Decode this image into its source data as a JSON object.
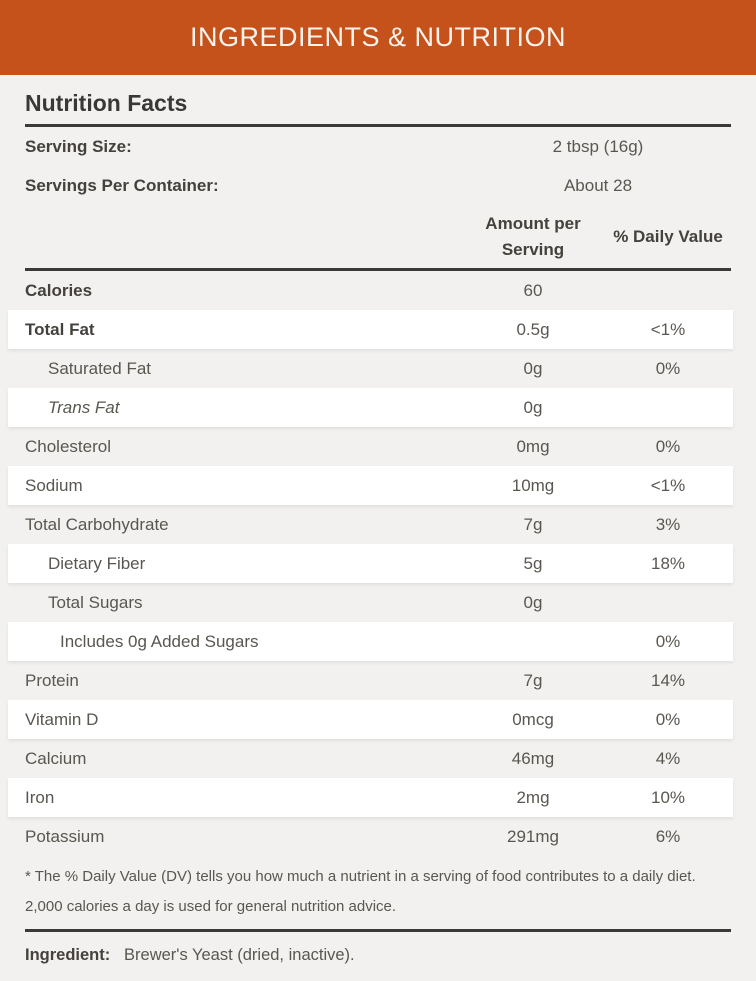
{
  "banner": {
    "title": "INGREDIENTS & NUTRITION"
  },
  "panel": {
    "title": "Nutrition Facts",
    "serving_rows": [
      {
        "label": "Serving Size:",
        "value": "2 tbsp (16g)"
      },
      {
        "label": "Servings Per Container:",
        "value": "About 28"
      }
    ],
    "columns": {
      "amount": "Amount per Serving",
      "daily_value": "% Daily Value"
    },
    "rows": [
      {
        "label": "Calories",
        "amount": "60",
        "dv": "",
        "indent": 0,
        "bold": true,
        "italic": false,
        "bg": "gray"
      },
      {
        "label": "Total Fat",
        "amount": "0.5g",
        "dv": "<1%",
        "indent": 0,
        "bold": true,
        "italic": false,
        "bg": "white"
      },
      {
        "label": "Saturated Fat",
        "amount": "0g",
        "dv": "0%",
        "indent": 1,
        "bold": false,
        "italic": false,
        "bg": "gray"
      },
      {
        "label": "Trans Fat",
        "amount": "0g",
        "dv": "",
        "indent": 1,
        "bold": false,
        "italic": true,
        "bg": "white"
      },
      {
        "label": "Cholesterol",
        "amount": "0mg",
        "dv": "0%",
        "indent": 0,
        "bold": false,
        "italic": false,
        "bg": "gray"
      },
      {
        "label": "Sodium",
        "amount": "10mg",
        "dv": "<1%",
        "indent": 0,
        "bold": false,
        "italic": false,
        "bg": "white"
      },
      {
        "label": "Total Carbohydrate",
        "amount": "7g",
        "dv": "3%",
        "indent": 0,
        "bold": false,
        "italic": false,
        "bg": "gray"
      },
      {
        "label": "Dietary Fiber",
        "amount": "5g",
        "dv": "18%",
        "indent": 1,
        "bold": false,
        "italic": false,
        "bg": "white"
      },
      {
        "label": "Total Sugars",
        "amount": "0g",
        "dv": "",
        "indent": 1,
        "bold": false,
        "italic": false,
        "bg": "gray"
      },
      {
        "label": "Includes 0g Added Sugars",
        "amount": "",
        "dv": "0%",
        "indent": 2,
        "bold": false,
        "italic": false,
        "bg": "white"
      },
      {
        "label": "Protein",
        "amount": "7g",
        "dv": "14%",
        "indent": 0,
        "bold": false,
        "italic": false,
        "bg": "gray"
      },
      {
        "label": "Vitamin D",
        "amount": "0mcg",
        "dv": "0%",
        "indent": 0,
        "bold": false,
        "italic": false,
        "bg": "white"
      },
      {
        "label": "Calcium",
        "amount": "46mg",
        "dv": "4%",
        "indent": 0,
        "bold": false,
        "italic": false,
        "bg": "gray"
      },
      {
        "label": "Iron",
        "amount": "2mg",
        "dv": "10%",
        "indent": 0,
        "bold": false,
        "italic": false,
        "bg": "white"
      },
      {
        "label": "Potassium",
        "amount": "291mg",
        "dv": "6%",
        "indent": 0,
        "bold": false,
        "italic": false,
        "bg": "gray"
      }
    ],
    "footnote": "* The % Daily Value (DV) tells you how much a nutrient in a serving of food contributes to a daily diet. 2,000 calories a day is used for general nutrition advice.",
    "ingredient": {
      "label": "Ingredient:",
      "value": "Brewer's Yeast (dried, inactive)."
    }
  },
  "colors": {
    "banner_bg": "#c5511b",
    "page_bg": "#f2f1ef",
    "rule": "#3a3a3a",
    "text_dark": "#45413c",
    "text_regular": "#5a5650"
  }
}
